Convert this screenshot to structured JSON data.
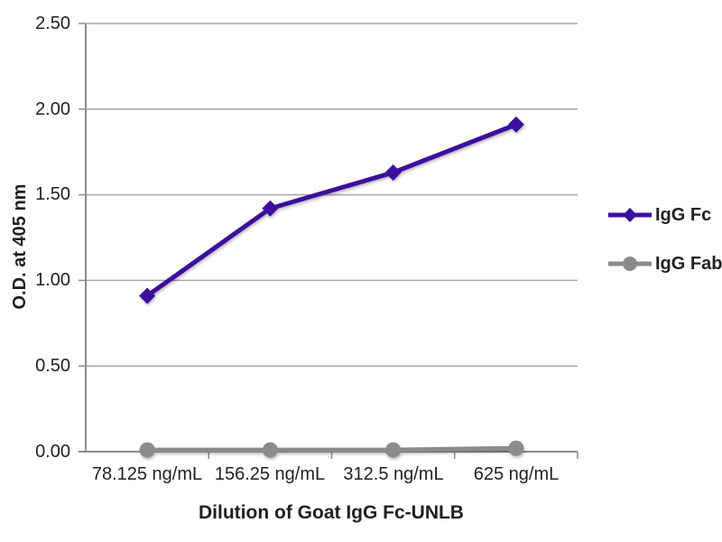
{
  "chart_data": {
    "type": "line",
    "title": "",
    "xlabel": "Dilution of Goat IgG Fc-UNLB",
    "ylabel": "O.D. at 405 nm",
    "categories": [
      "78.125 ng/mL",
      "156.25 ng/mL",
      "312.5 ng/mL",
      "625 ng/mL"
    ],
    "yticks": [
      "2.50",
      "2.00",
      "1.50",
      "1.00",
      "0.50",
      "0.00"
    ],
    "ylim": [
      0,
      2.5
    ],
    "grid": true,
    "legend_position": "right",
    "series": [
      {
        "name": "IgG Fc",
        "marker": "diamond",
        "color": "#3d0e9d",
        "values": [
          0.91,
          1.42,
          1.63,
          1.91
        ]
      },
      {
        "name": "IgG Fab",
        "marker": "circle",
        "color": "#8b8b8b",
        "values": [
          0.01,
          0.01,
          0.01,
          0.02
        ]
      }
    ],
    "colors": {
      "background": "#ffffff",
      "gridline": "#a6a6a6",
      "axis": "#8c8c8c",
      "text": "#231f20"
    }
  }
}
